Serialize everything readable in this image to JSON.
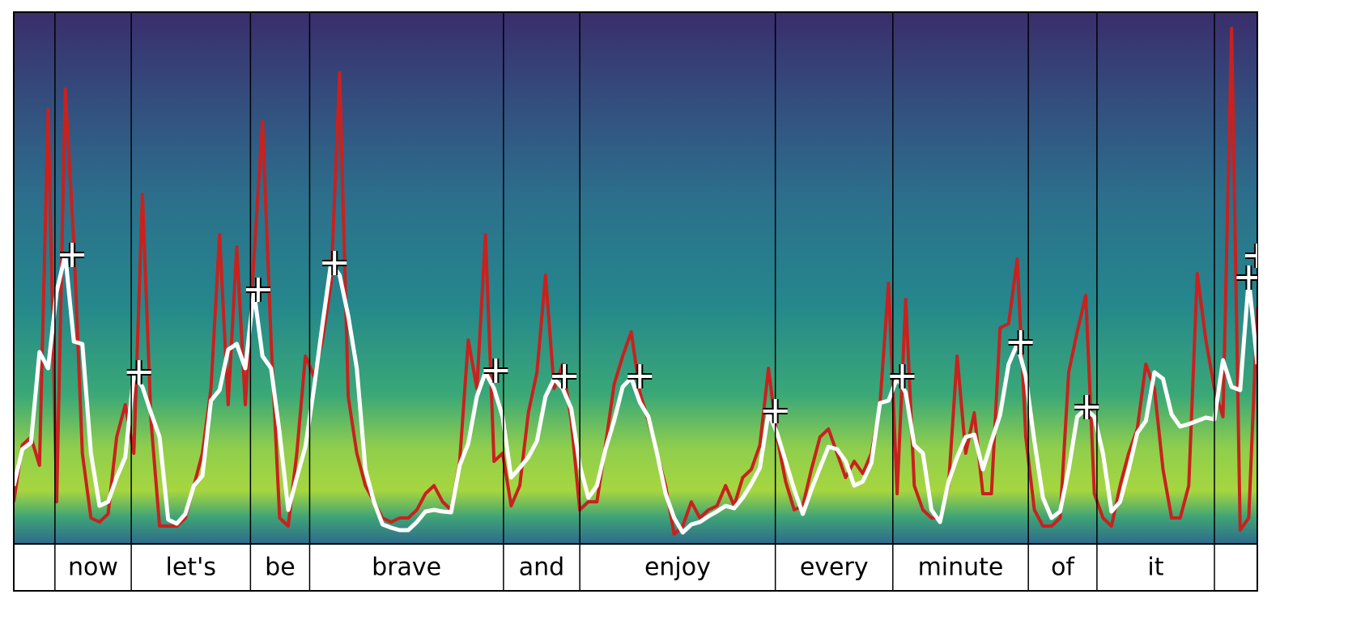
{
  "chart_data": {
    "type": "line",
    "xlim": [
      0,
      145
    ],
    "ylim": [
      0,
      657
    ],
    "words": [
      "now",
      "let's",
      "be",
      "brave",
      "and",
      "enjoy",
      "every",
      "minute",
      "of",
      "it"
    ],
    "boundaries": [
      4.8,
      13.7,
      27.6,
      34.5,
      57.1,
      66.0,
      88.8,
      102.5,
      118.3,
      126.3,
      140.0
    ],
    "series": [
      {
        "color": "#c9211e",
        "values": [
          52,
          122,
          132,
          97,
          537,
          52,
          562,
          372,
          112,
          32,
          27,
          37,
          132,
          172,
          112,
          432,
          152,
          22,
          22,
          22,
          32,
          72,
          112,
          192,
          382,
          172,
          367,
          172,
          352,
          522,
          252,
          32,
          22,
          112,
          232,
          207,
          252,
          322,
          582,
          182,
          112,
          72,
          52,
          32,
          27,
          32,
          32,
          42,
          62,
          72,
          52,
          42,
          102,
          252,
          192,
          382,
          102,
          112,
          47,
          72,
          162,
          212,
          332,
          192,
          222,
          152,
          42,
          52,
          52,
          122,
          197,
          232,
          262,
          187,
          152,
          112,
          72,
          12,
          22,
          52,
          32,
          42,
          47,
          72,
          47,
          82,
          92,
          122,
          217,
          132,
          77,
          42,
          47,
          92,
          132,
          142,
          112,
          82,
          102,
          87,
          112,
          172,
          322,
          62,
          302,
          72,
          42,
          32,
          32,
          72,
          232,
          112,
          162,
          62,
          62,
          267,
          272,
          352,
          132,
          42,
          22,
          22,
          32,
          212,
          262,
          307,
          62,
          32,
          22,
          72,
          112,
          142,
          222,
          192,
          92,
          32,
          32,
          72,
          334,
          252,
          192,
          157,
          637,
          17,
          32,
          292
        ]
      },
      {
        "color": "#ffffff",
        "values": [
          72,
          117,
          125,
          237,
          217,
          312,
          357,
          250,
          247,
          112,
          47,
          52,
          82,
          107,
          210,
          194,
          162,
          132,
          30,
          25,
          37,
          72,
          84,
          177,
          190,
          240,
          247,
          217,
          312,
          232,
          217,
          137,
          42,
          82,
          120,
          192,
          272,
          347,
          332,
          282,
          217,
          92,
          52,
          24,
          20,
          17,
          17,
          27,
          40,
          42,
          40,
          39,
          97,
          124,
          182,
          212,
          192,
          157,
          82,
          94,
          107,
          127,
          182,
          204,
          192,
          167,
          97,
          57,
          72,
          117,
          152,
          194,
          205,
          175,
          157,
          112,
          62,
          32,
          14,
          24,
          27,
          34,
          40,
          47,
          44,
          57,
          74,
          94,
          162,
          137,
          102,
          67,
          37,
          67,
          94,
          120,
          117,
          102,
          72,
          77,
          100,
          174,
          177,
          205,
          187,
          122,
          112,
          42,
          27,
          77,
          107,
          132,
          135,
          92,
          127,
          159,
          222,
          247,
          207,
          127,
          57,
          32,
          40,
          92,
          157,
          167,
          157,
          112,
          40,
          52,
          92,
          137,
          152,
          212,
          204,
          160,
          145,
          148,
          152,
          156,
          154,
          227,
          194,
          190,
          327,
          222
        ]
      }
    ],
    "markers": {
      "color": "#ffffff",
      "x": [
        6.8,
        14.6,
        28.5,
        37.4,
        56.2,
        64.2,
        73.0,
        88.8,
        103.6,
        117.4,
        125.1,
        144.0,
        145
      ],
      "y": [
        357,
        212,
        314,
        347,
        214,
        207,
        207,
        164,
        207,
        249,
        169,
        329,
        356
      ]
    }
  }
}
